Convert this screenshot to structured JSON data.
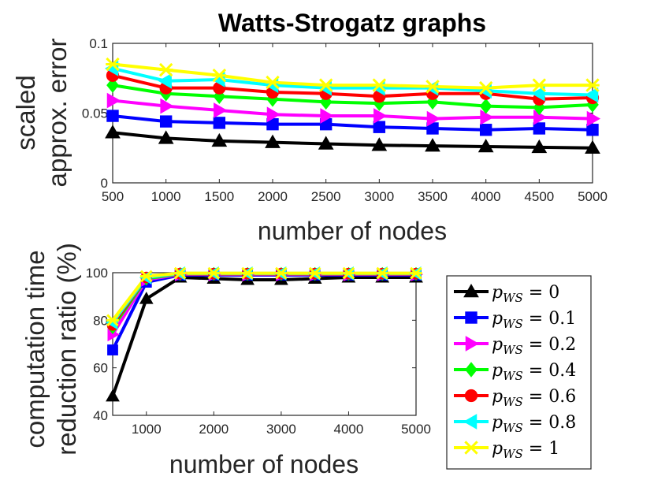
{
  "chart_data": [
    {
      "type": "line",
      "title": "Watts-Strogatz graphs",
      "xlabel": "number of nodes",
      "ylabel_lines": [
        "scaled",
        "approx. error"
      ],
      "x": [
        500,
        1000,
        1500,
        2000,
        2500,
        3000,
        3500,
        4000,
        4500,
        5000
      ],
      "xlim": [
        500,
        5000
      ],
      "ylim": [
        0,
        0.1
      ],
      "xticks": [
        500,
        1000,
        1500,
        2000,
        2500,
        3000,
        3500,
        4000,
        4500,
        5000
      ],
      "yticks": [
        0,
        0.05,
        0.1
      ],
      "ytick_labels": [
        "0",
        "0.05",
        "0.1"
      ],
      "series": [
        {
          "name": "p_WS = 0",
          "color": "#000000",
          "marker": "triangle-up",
          "values": [
            0.036,
            0.032,
            0.03,
            0.029,
            0.028,
            0.027,
            0.0265,
            0.026,
            0.0255,
            0.025
          ]
        },
        {
          "name": "p_WS = 0.1",
          "color": "#0000ff",
          "marker": "square",
          "values": [
            0.048,
            0.044,
            0.043,
            0.042,
            0.042,
            0.04,
            0.039,
            0.038,
            0.039,
            0.038
          ]
        },
        {
          "name": "p_WS = 0.2",
          "color": "#ff00ff",
          "marker": "triangle-right",
          "values": [
            0.059,
            0.055,
            0.052,
            0.049,
            0.048,
            0.048,
            0.046,
            0.047,
            0.047,
            0.046
          ]
        },
        {
          "name": "p_WS = 0.4",
          "color": "#00ff00",
          "marker": "diamond",
          "values": [
            0.07,
            0.064,
            0.062,
            0.06,
            0.058,
            0.057,
            0.058,
            0.055,
            0.054,
            0.056
          ]
        },
        {
          "name": "p_WS = 0.6",
          "color": "#ff0000",
          "marker": "circle",
          "values": [
            0.077,
            0.068,
            0.068,
            0.065,
            0.064,
            0.062,
            0.064,
            0.064,
            0.06,
            0.061
          ]
        },
        {
          "name": "p_WS = 0.8",
          "color": "#00ffff",
          "marker": "triangle-left",
          "values": [
            0.082,
            0.073,
            0.074,
            0.07,
            0.068,
            0.068,
            0.068,
            0.066,
            0.064,
            0.063
          ]
        },
        {
          "name": "p_WS = 1",
          "color": "#ffff00",
          "marker": "x-star",
          "values": [
            0.085,
            0.081,
            0.077,
            0.072,
            0.07,
            0.07,
            0.069,
            0.068,
            0.07,
            0.07
          ]
        }
      ]
    },
    {
      "type": "line",
      "title": "",
      "xlabel": "number of nodes",
      "ylabel_lines": [
        "computation time",
        "reduction ratio (%)"
      ],
      "x": [
        500,
        1000,
        1500,
        2000,
        2500,
        3000,
        3500,
        4000,
        4500,
        5000
      ],
      "xlim": [
        500,
        5000
      ],
      "ylim": [
        40,
        100
      ],
      "xticks": [
        1000,
        2000,
        3000,
        4000,
        5000
      ],
      "yticks": [
        40,
        60,
        80,
        100
      ],
      "ytick_labels": [
        "40",
        "60",
        "80",
        "100"
      ],
      "series": [
        {
          "name": "p_WS = 0",
          "color": "#000000",
          "marker": "triangle-up",
          "values": [
            48,
            89,
            98,
            97.5,
            97,
            97,
            97.5,
            98,
            98,
            98
          ]
        },
        {
          "name": "p_WS = 0.1",
          "color": "#0000ff",
          "marker": "square",
          "values": [
            67.5,
            96,
            99,
            99,
            99,
            99,
            99,
            99,
            99,
            99
          ]
        },
        {
          "name": "p_WS = 0.2",
          "color": "#ff00ff",
          "marker": "triangle-right",
          "values": [
            74,
            97,
            99.3,
            99.3,
            99.3,
            99.3,
            99.3,
            99.3,
            99.3,
            99.3
          ]
        },
        {
          "name": "p_WS = 0.4",
          "color": "#00ff00",
          "marker": "diamond",
          "values": [
            77,
            97.5,
            99.5,
            99.5,
            99.5,
            99.5,
            99.5,
            99.5,
            99.5,
            99.5
          ]
        },
        {
          "name": "p_WS = 0.6",
          "color": "#ff0000",
          "marker": "circle",
          "values": [
            78,
            98,
            99.6,
            99.6,
            99.6,
            99.6,
            99.6,
            99.6,
            99.6,
            99.6
          ]
        },
        {
          "name": "p_WS = 0.8",
          "color": "#00ffff",
          "marker": "triangle-left",
          "values": [
            79,
            98,
            99.7,
            99.7,
            99.7,
            99.7,
            99.7,
            99.7,
            99.7,
            99.7
          ]
        },
        {
          "name": "p_WS = 1",
          "color": "#ffff00",
          "marker": "x-star",
          "values": [
            80,
            98.5,
            99.8,
            99.8,
            99.8,
            99.8,
            99.8,
            99.8,
            99.8,
            99.8
          ]
        }
      ]
    }
  ],
  "legend": {
    "placement": "right of lower chart",
    "entries": [
      {
        "symbol": "p",
        "subscript": "WS",
        "rest": " = 0",
        "color": "#000000",
        "marker": "triangle-up"
      },
      {
        "symbol": "p",
        "subscript": "WS",
        "rest": " = 0.1",
        "color": "#0000ff",
        "marker": "square"
      },
      {
        "symbol": "p",
        "subscript": "WS",
        "rest": " = 0.2",
        "color": "#ff00ff",
        "marker": "triangle-right"
      },
      {
        "symbol": "p",
        "subscript": "WS",
        "rest": " = 0.4",
        "color": "#00ff00",
        "marker": "diamond"
      },
      {
        "symbol": "p",
        "subscript": "WS",
        "rest": " = 0.6",
        "color": "#ff0000",
        "marker": "circle"
      },
      {
        "symbol": "p",
        "subscript": "WS",
        "rest": " = 0.8",
        "color": "#00ffff",
        "marker": "triangle-left"
      },
      {
        "symbol": "p",
        "subscript": "WS",
        "rest": " = 1",
        "color": "#ffff00",
        "marker": "x-star"
      }
    ]
  }
}
